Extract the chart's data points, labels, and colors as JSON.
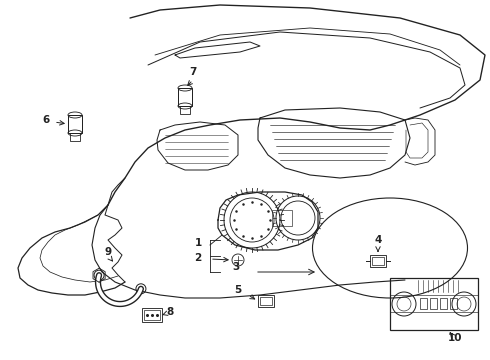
{
  "bg_color": "#ffffff",
  "line_color": "#222222",
  "lw": 0.9,
  "figsize": [
    4.9,
    3.6
  ],
  "dpi": 100
}
